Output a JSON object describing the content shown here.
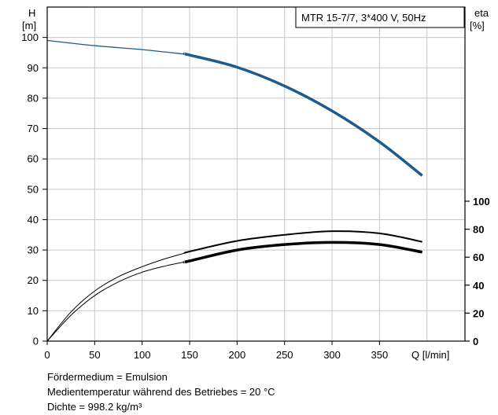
{
  "chart_data": {
    "type": "line",
    "title": "MTR 15-7/7, 3*400 V, 50Hz",
    "xlabel": "Q [l/min]",
    "ylabel_left": [
      "H",
      "[m]"
    ],
    "ylabel_right": [
      "eta",
      "[%]"
    ],
    "xlim": [
      0,
      440
    ],
    "ylim_left": [
      0,
      110
    ],
    "ylim_right": [
      0,
      100
    ],
    "x_ticks": [
      0,
      50,
      100,
      150,
      200,
      250,
      300,
      350
    ],
    "y_ticks_left": [
      0,
      10,
      20,
      30,
      40,
      50,
      60,
      70,
      80,
      90,
      100
    ],
    "y_ticks_right": [
      0,
      20,
      40,
      60,
      80,
      100
    ],
    "grid": true,
    "series": [
      {
        "axis": "left",
        "color": "#1f5a8c",
        "x": [
          0,
          50,
          100,
          145,
          150,
          200,
          250,
          300,
          350,
          395
        ],
        "y": [
          99,
          97.3,
          96,
          94.5,
          94.2,
          90.2,
          84,
          75.8,
          65.6,
          54.5
        ],
        "thick_from": 145
      },
      {
        "axis": "left",
        "color": "#000000",
        "x": [
          0,
          25,
          50,
          75,
          100,
          125,
          145,
          150,
          200,
          250,
          300,
          350,
          395
        ],
        "y": [
          0,
          9.6,
          16.5,
          21.2,
          24.5,
          27.2,
          29,
          29.5,
          33,
          35,
          36.2,
          35.5,
          32.7
        ],
        "thick_from": 145
      },
      {
        "axis": "left",
        "color": "#000000",
        "x": [
          0,
          25,
          50,
          75,
          100,
          125,
          145,
          150,
          200,
          250,
          300,
          350,
          395
        ],
        "y": [
          0,
          8.5,
          15,
          19.5,
          22.7,
          24.8,
          26.1,
          26.4,
          30,
          31.8,
          32.5,
          31.8,
          29.3
        ],
        "thick_from": 145
      }
    ]
  },
  "notes": {
    "medium": "Fördermedium = Emulsion",
    "temperature": "Medientemperatur während des Betriebes = 20 °C",
    "density": "Dichte = 998.2 kg/m³"
  }
}
